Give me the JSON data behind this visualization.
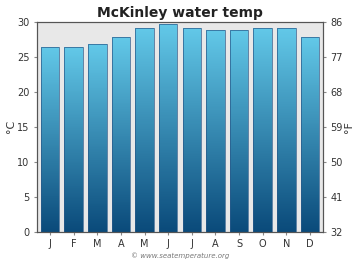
{
  "title": "McKinley water temp",
  "months": [
    "J",
    "F",
    "M",
    "A",
    "M",
    "J",
    "J",
    "A",
    "S",
    "O",
    "N",
    "D"
  ],
  "values_c": [
    26.5,
    26.4,
    26.8,
    27.8,
    29.2,
    29.7,
    29.2,
    28.9,
    28.9,
    29.2,
    29.1,
    27.9
  ],
  "ylim_c": [
    0,
    30
  ],
  "yticks_c": [
    0,
    5,
    10,
    15,
    20,
    25,
    30
  ],
  "yticks_f": [
    32,
    41,
    50,
    59,
    68,
    77,
    86
  ],
  "ylabel_left": "°C",
  "ylabel_right": "°F",
  "bar_color_top": "#62c8e8",
  "bar_color_bottom": "#0a4a7a",
  "bar_edge_color": "#2a5a8a",
  "fig_bg_color": "#ffffff",
  "plot_bg_color": "#e8e8e8",
  "watermark": "© www.seatemperature.org",
  "title_fontsize": 10,
  "tick_fontsize": 7,
  "label_fontsize": 8
}
